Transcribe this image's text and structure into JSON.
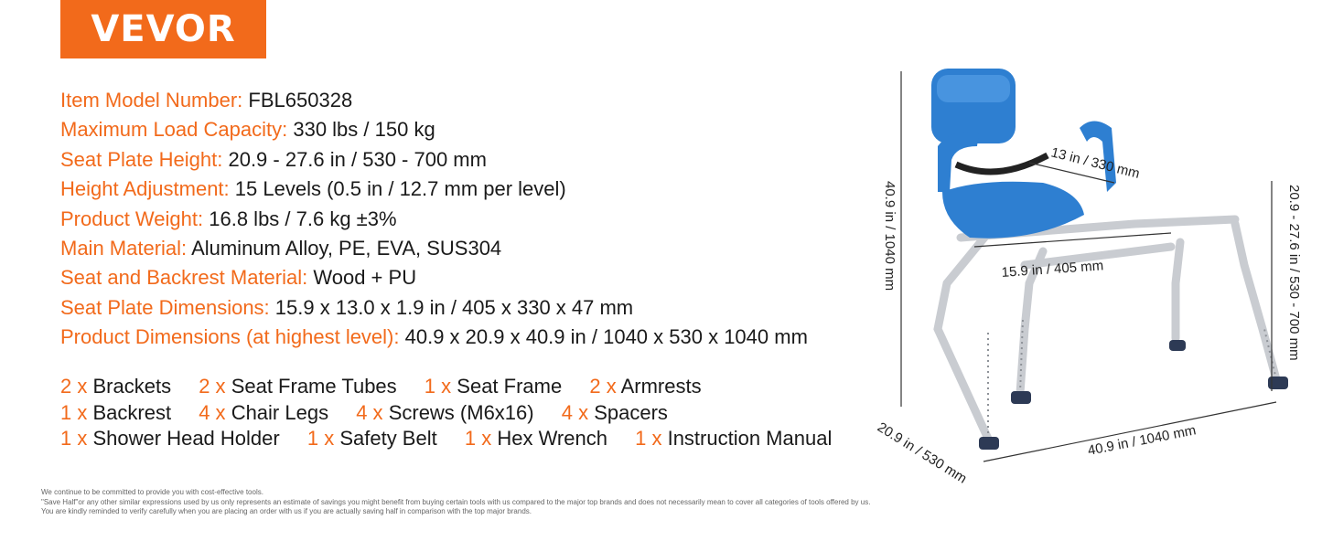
{
  "brand": {
    "logo": "VEVOR",
    "color": "#f26a1b"
  },
  "specs": [
    {
      "label": "Item Model Number:",
      "value": "FBL650328"
    },
    {
      "label": "Maximum Load Capacity:",
      "value": "330 lbs / 150 kg"
    },
    {
      "label": "Seat Plate Height:",
      "value": "20.9 - 27.6 in / 530 - 700 mm"
    },
    {
      "label": "Height Adjustment:",
      "value": "15 Levels (0.5 in / 12.7 mm per level)"
    },
    {
      "label": "Product Weight:",
      "value": "16.8 lbs / 7.6 kg ±3%"
    },
    {
      "label": "Main Material:",
      "value": "Aluminum Alloy, PE, EVA, SUS304"
    },
    {
      "label": "Seat and Backrest Material:",
      "value": "Wood + PU"
    },
    {
      "label": "Seat Plate Dimensions:",
      "value": "15.9 x 13.0 x 1.9 in / 405 x 330 x 47 mm"
    },
    {
      "label": "Product Dimensions (at highest level):",
      "value": "40.9 x 20.9  x 40.9 in / 1040 x 530 x 1040 mm"
    }
  ],
  "package": [
    [
      {
        "qty": "2 x",
        "name": "Brackets"
      },
      {
        "qty": "2 x",
        "name": "Seat Frame Tubes"
      },
      {
        "qty": "1 x",
        "name": "Seat Frame"
      },
      {
        "qty": "2 x",
        "name": "Armrests"
      }
    ],
    [
      {
        "qty": "1 x",
        "name": "Backrest"
      },
      {
        "qty": "4 x",
        "name": "Chair Legs"
      },
      {
        "qty": "4 x",
        "name": "Screws (M6x16)"
      },
      {
        "qty": "4 x",
        "name": "Spacers"
      }
    ],
    [
      {
        "qty": "1 x",
        "name": "Shower Head Holder"
      },
      {
        "qty": "1 x",
        "name": "Safety Belt"
      },
      {
        "qty": "1 x",
        "name": "Hex Wrench"
      },
      {
        "qty": "1 x",
        "name": "Instruction Manual"
      }
    ]
  ],
  "disclaimer": [
    "We continue to be committed to provide you with cost-effective tools.",
    "\"Save Half\"or any other similar expressions used by us only represents an estimate of savings you might benefit from buying certain tools with us compared to the major top brands and does not necessarily mean to cover all categories of tools offered by us.",
    "You are kindly reminded to verify carefully when you are placing an order with us if you are actually saving half in comparison with the top major brands."
  ],
  "dimensions": {
    "total_height": "40.9 in / 1040 mm",
    "seat_height": "20.9 - 27.6 in / 530 - 700 mm",
    "seat_depth": "13 in / 330 mm",
    "seat_width": "15.9 in / 405 mm",
    "depth": "20.9 in / 530 mm",
    "length": "40.9 in / 1040 mm"
  },
  "colors": {
    "accent": "#f26a1b",
    "seat_blue": "#2e7fd1",
    "frame": "#c9ccd1"
  }
}
